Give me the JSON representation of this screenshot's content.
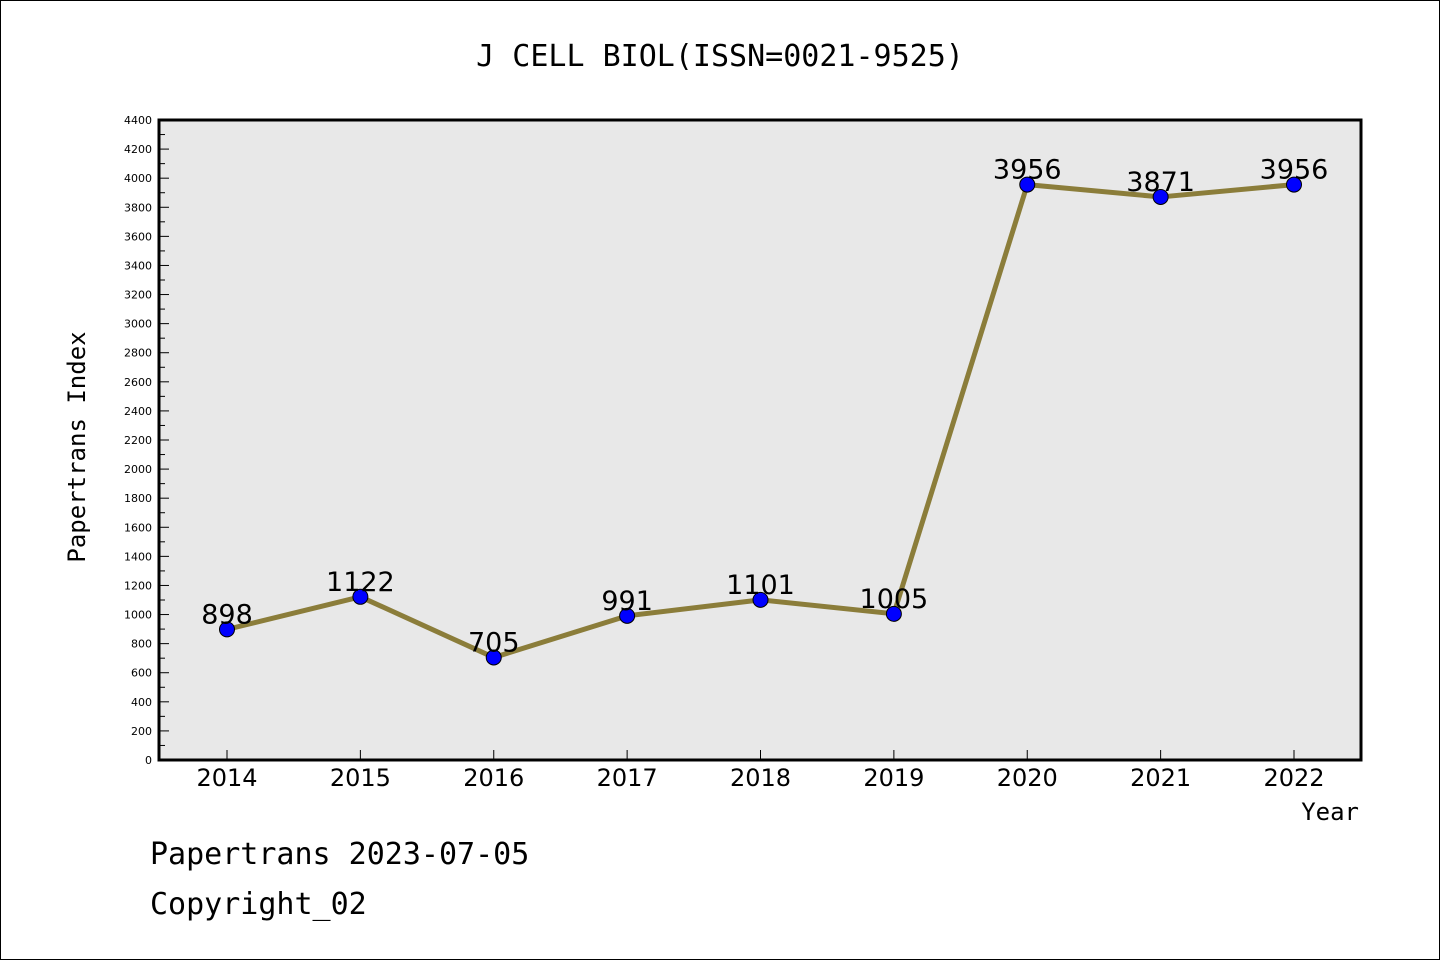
{
  "chart_data": {
    "type": "line",
    "title": "J CELL BIOL(ISSN=0021-9525)",
    "xlabel": "Year",
    "ylabel": "Papertrans Index",
    "x": [
      "2014",
      "2015",
      "2016",
      "2017",
      "2018",
      "2019",
      "2020",
      "2021",
      "2022"
    ],
    "values": [
      898,
      1122,
      705,
      991,
      1101,
      1005,
      3956,
      3871,
      3956
    ],
    "data_labels": [
      "898",
      "1122",
      "705",
      "991",
      "1101",
      "1005",
      "3956",
      "3871",
      "3956"
    ],
    "ylim": [
      0,
      4400
    ],
    "yticks": [
      "0",
      "200",
      "400",
      "600",
      "800",
      "1000",
      "1200",
      "1400",
      "1600",
      "1800",
      "2000",
      "2200",
      "2400",
      "2600",
      "2800",
      "3000",
      "3200",
      "3400",
      "3600",
      "3800",
      "4000",
      "4200",
      "4400"
    ],
    "grid": false,
    "legend": "none",
    "colors": {
      "line": "#8b7d3a",
      "marker": "#0000ff",
      "plot_background": "#e8e8e8"
    }
  },
  "footer": {
    "line1": "Papertrans 2023-07-05",
    "line2": "Copyright_02"
  }
}
